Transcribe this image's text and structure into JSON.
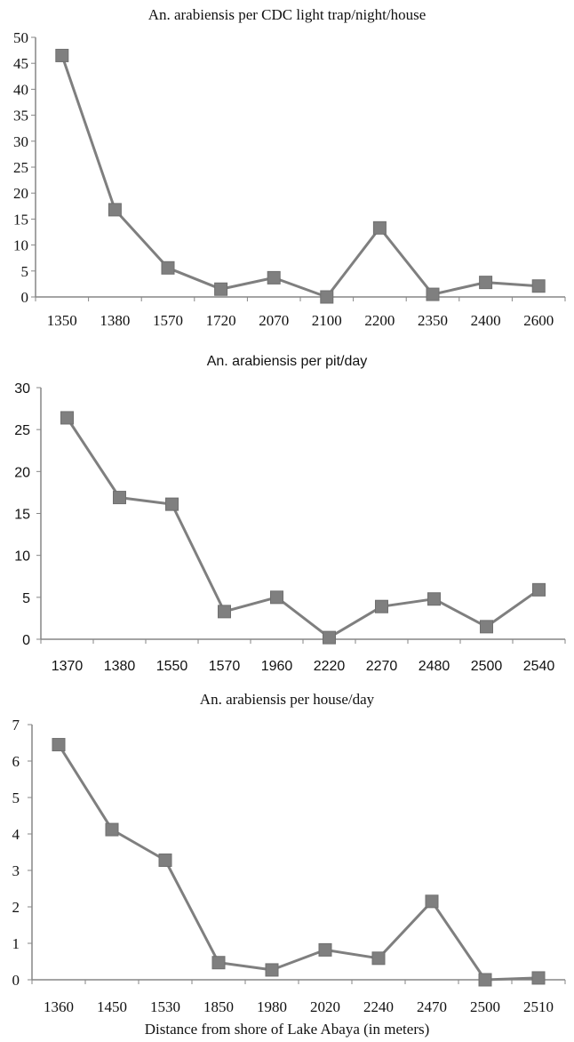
{
  "chart_data": [
    {
      "type": "line",
      "title": "An. arabiensis per CDC light trap/night/house",
      "categories": [
        "1350",
        "1380",
        "1570",
        "1720",
        "2070",
        "2100",
        "2200",
        "2350",
        "2400",
        "2600"
      ],
      "values": [
        46.5,
        16.8,
        5.6,
        1.5,
        3.7,
        0,
        13.3,
        0.5,
        2.8,
        2.1
      ],
      "ylim": [
        0,
        50
      ],
      "yticks": [
        "0",
        "5",
        "10",
        "15",
        "20",
        "25",
        "30",
        "35",
        "40",
        "45",
        "50"
      ],
      "marker": "square",
      "grid": false,
      "legend": "none"
    },
    {
      "type": "line",
      "title": "An. arabiensis per pit/day",
      "categories": [
        "1370",
        "1380",
        "1550",
        "1570",
        "1960",
        "2220",
        "2270",
        "2480",
        "2500",
        "2540"
      ],
      "values": [
        26.4,
        16.9,
        16.1,
        3.3,
        5.0,
        0.2,
        3.9,
        4.8,
        1.5,
        5.9
      ],
      "ylim": [
        0,
        30
      ],
      "yticks": [
        "0",
        "5",
        "10",
        "15",
        "20",
        "25",
        "30"
      ],
      "marker": "square",
      "grid": false,
      "legend": "none"
    },
    {
      "type": "line",
      "title": "An. arabiensis per house/day",
      "categories": [
        "1360",
        "1450",
        "1530",
        "1850",
        "1980",
        "2020",
        "2240",
        "2470",
        "2500",
        "2510"
      ],
      "values": [
        6.45,
        4.12,
        3.28,
        0.47,
        0.27,
        0.82,
        0.59,
        2.15,
        0.0,
        0.05
      ],
      "ylim": [
        0,
        7
      ],
      "yticks": [
        "0",
        "1",
        "2",
        "3",
        "4",
        "5",
        "6",
        "7"
      ],
      "marker": "square",
      "grid": false,
      "legend": "none"
    }
  ],
  "xlabel": "Distance from shore of Lake Abaya (in meters)",
  "colors": {
    "series": "#7f7f7f",
    "axis": "#868686",
    "text": "#111111"
  }
}
